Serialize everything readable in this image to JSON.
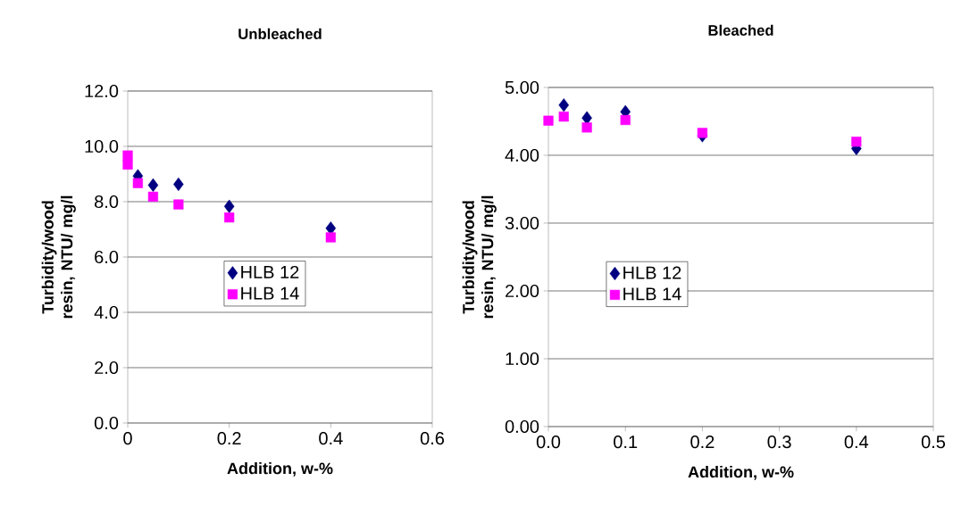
{
  "chart_data": [
    {
      "type": "scatter",
      "title": "Unbleached",
      "xlabel": "Addition, w-%",
      "ylabel": "Turbidity/wood resin, NTU/ mg/l",
      "xlim": [
        0,
        0.6
      ],
      "xticks": [
        0,
        0.2,
        0.4,
        0.6
      ],
      "ylim": [
        0,
        12
      ],
      "yticks": [
        {
          "value": 0,
          "label": "0.0"
        },
        {
          "value": 2,
          "label": "2.0"
        },
        {
          "value": 4,
          "label": "4.0"
        },
        {
          "value": 6,
          "label": "6.0"
        },
        {
          "value": 8,
          "label": "8.0"
        },
        {
          "value": 10,
          "label": "10.0"
        },
        {
          "value": 12,
          "label": "12.0"
        }
      ],
      "grid": "y",
      "legend": "center",
      "series": [
        {
          "name": "HLB 12",
          "color": "#000080",
          "marker": "diamond",
          "x": [
            0.02,
            0.05,
            0.1,
            0.2,
            0.4
          ],
          "values": [
            8.93,
            8.6,
            8.63,
            7.83,
            7.04
          ]
        },
        {
          "name": "HLB 14",
          "color": "#ff00ff",
          "marker": "square",
          "x": [
            0,
            0,
            0.02,
            0.05,
            0.1,
            0.2,
            0.4
          ],
          "values": [
            9.67,
            9.34,
            8.67,
            8.18,
            7.9,
            7.43,
            6.71
          ]
        }
      ]
    },
    {
      "type": "scatter",
      "title": "Bleached",
      "xlabel": "Addition, w-%",
      "ylabel": "Turbidity/wood resin, NTU/ mg/l",
      "xlim": [
        0,
        0.5
      ],
      "xticks": [
        {
          "value": 0,
          "label": "0.0"
        },
        0.1,
        0.2,
        0.3,
        0.4,
        0.5
      ],
      "ylim": [
        0,
        5
      ],
      "yticks": [
        {
          "value": 0,
          "label": "0.00"
        },
        {
          "value": 1,
          "label": "1.00"
        },
        {
          "value": 2,
          "label": "2.00"
        },
        {
          "value": 3,
          "label": "3.00"
        },
        {
          "value": 4,
          "label": "4.00"
        },
        {
          "value": 5,
          "label": "5.00"
        }
      ],
      "grid": "y",
      "legend": "center left",
      "series": [
        {
          "name": "HLB 12",
          "color": "#000080",
          "marker": "diamond",
          "x": [
            0.02,
            0.05,
            0.1,
            0.2,
            0.4
          ],
          "values": [
            4.74,
            4.55,
            4.64,
            4.29,
            4.1
          ]
        },
        {
          "name": "HLB 14",
          "color": "#ff00ff",
          "marker": "square",
          "x": [
            0,
            0.02,
            0.05,
            0.1,
            0.2,
            0.4
          ],
          "values": [
            4.51,
            4.57,
            4.41,
            4.52,
            4.33,
            4.2
          ]
        }
      ]
    }
  ]
}
